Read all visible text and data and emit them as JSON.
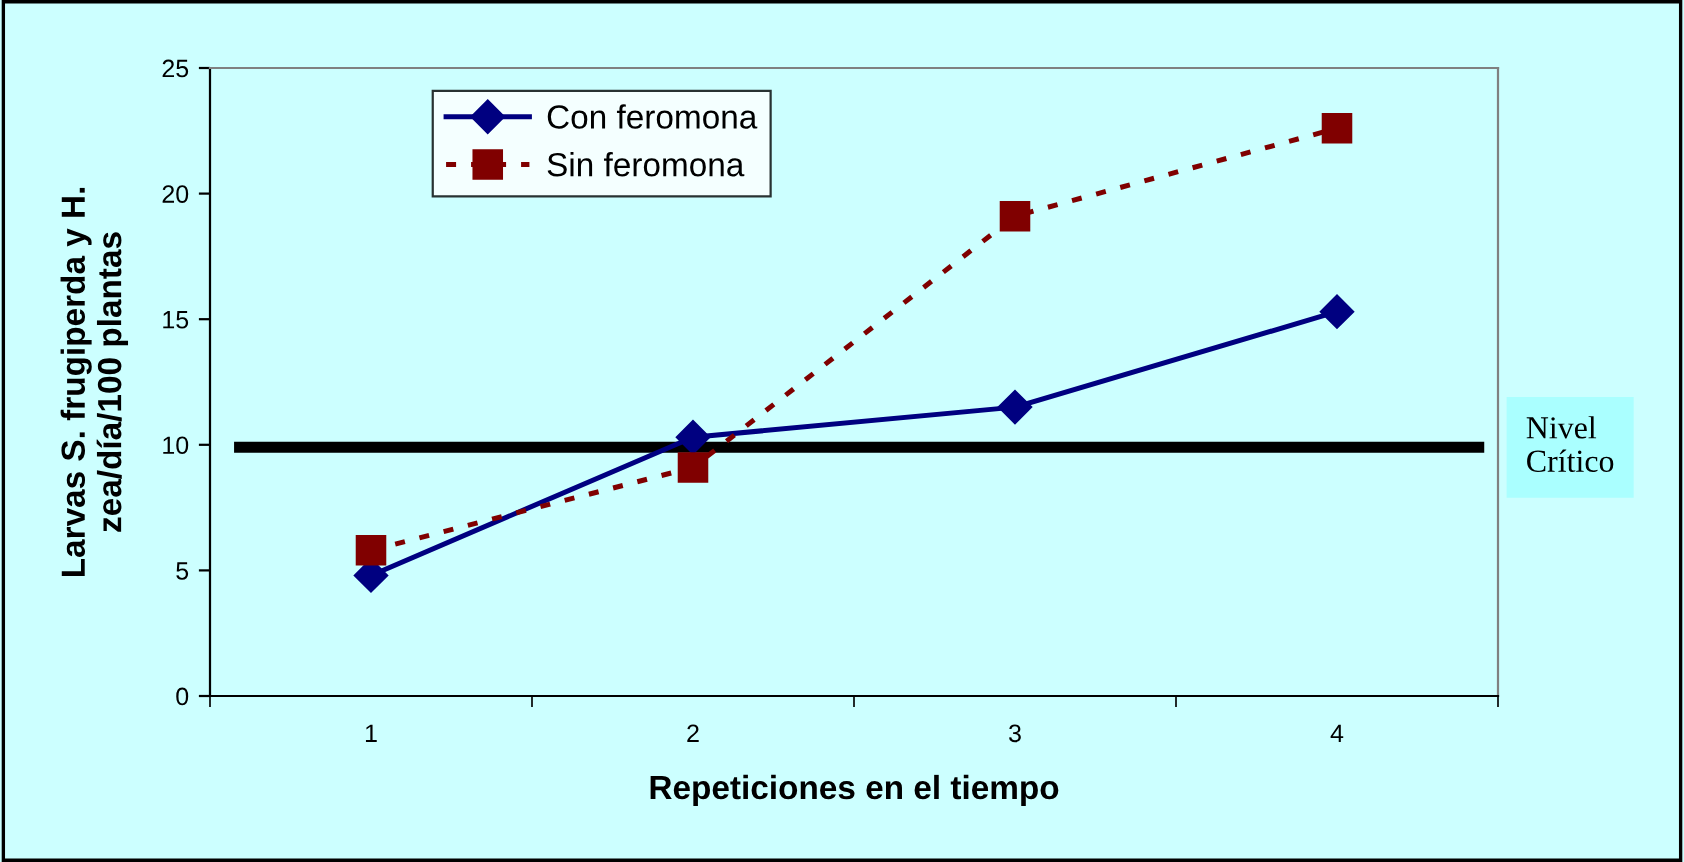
{
  "chart_data": {
    "type": "line",
    "xlabel": "Repeticiones en el tiempo",
    "ylabel": "Larvas S. frugiperda y H.\nzea/día/100 plantas",
    "categories": [
      "1",
      "2",
      "3",
      "4"
    ],
    "series": [
      {
        "name": "Con feromona",
        "color": "#000080",
        "values": [
          4.8,
          10.3,
          11.5,
          15.3
        ],
        "marker": "diamond",
        "line_style": "solid"
      },
      {
        "name": "Sin feromona",
        "color": "#800000",
        "values": [
          5.8,
          9.1,
          19.1,
          22.6
        ],
        "marker": "square",
        "line_style": "dotted"
      }
    ],
    "ylim": [
      0,
      25
    ],
    "yticks": [
      0,
      5,
      10,
      15,
      20,
      25
    ],
    "grid": false,
    "legend": "top left",
    "ref_lines": [
      {
        "axis": "y",
        "value": 9.9,
        "label": "Nivel\nCrítico",
        "color": "#000000"
      }
    ]
  }
}
